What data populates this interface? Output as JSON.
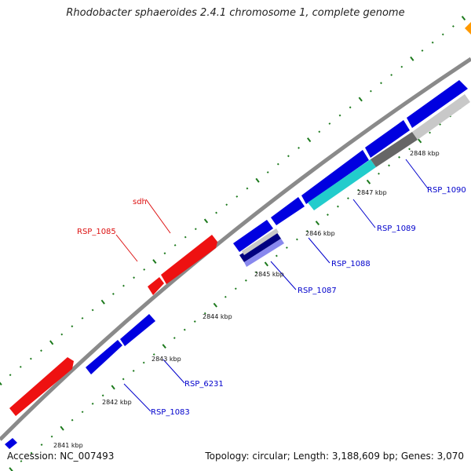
{
  "title": "Rhodobacter sphaeroides 2.4.1 chromosome 1, complete genome",
  "accession_label": "Accession: NC_007493",
  "topology_label": "Topology: circular; Length: 3,188,609 bp; Genes: 3,070",
  "colors": {
    "backbone": "#8a8a8a",
    "tick": "#1d7a1d",
    "gene_plus": "#0000e0",
    "gene_highlight": "#ee1111",
    "label_plus": "#0000cc",
    "label_highlight": "#dd1111",
    "cyan": "#22cccc",
    "gray_dark": "#666666",
    "gray_light": "#c8c8c8",
    "orange": "#ff9900"
  },
  "scale_labels": [
    "2841 kbp",
    "2842 kbp",
    "2843 kbp",
    "2844 kbp",
    "2845 kbp",
    "2846 kbp",
    "2847 kbp",
    "2848 kbp"
  ],
  "gene_labels": [
    {
      "text": "sdh",
      "kind": "highlight"
    },
    {
      "text": "RSP_1085",
      "kind": "highlight"
    },
    {
      "text": "RSP_1090",
      "kind": "plus"
    },
    {
      "text": "RSP_1089",
      "kind": "plus"
    },
    {
      "text": "RSP_1088",
      "kind": "plus"
    },
    {
      "text": "RSP_1087",
      "kind": "plus"
    },
    {
      "text": "RSP_6231",
      "kind": "plus"
    },
    {
      "text": "RSP_1083",
      "kind": "plus"
    }
  ]
}
